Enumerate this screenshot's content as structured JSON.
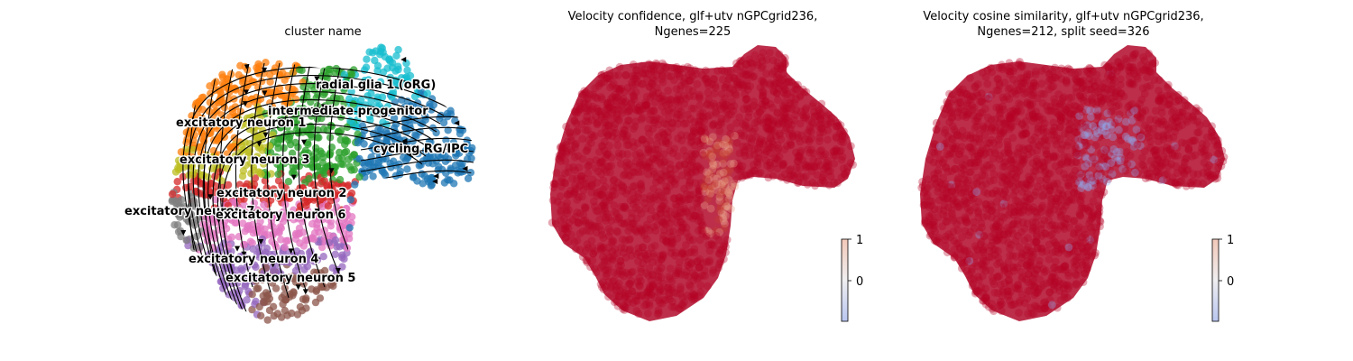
{
  "chart_data": [
    {
      "type": "scatter",
      "title": "cluster name",
      "overlay": "velocity streamlines",
      "clusters": [
        {
          "name": "radial glia 1 (oRG)",
          "color": "#17becf"
        },
        {
          "name": "intermediate progenitor",
          "color": "#2ca02c"
        },
        {
          "name": "excitatory neuron 1",
          "color": "#ff7f0e"
        },
        {
          "name": "cycling RG/IPC",
          "color": "#1f77b4"
        },
        {
          "name": "excitatory neuron 3",
          "color": "#bcbd22"
        },
        {
          "name": "excitatory neuron 2",
          "color": "#d62728"
        },
        {
          "name": "excitatory neuron 7",
          "color": "#7f7f7f"
        },
        {
          "name": "excitatory neuron 6",
          "color": "#e377c2"
        },
        {
          "name": "excitatory neuron 4",
          "color": "#9467bd"
        },
        {
          "name": "excitatory neuron 5",
          "color": "#8c564b"
        }
      ]
    },
    {
      "type": "scatter",
      "title_line1": "Velocity confidence, glf+utv nGPCgrid236,",
      "title_line2": "Ngenes=225",
      "colormap": "coolwarm",
      "colorbar": {
        "max": "1",
        "mid": "0"
      }
    },
    {
      "type": "scatter",
      "title_line1": "Velocity cosine similarity, glf+utv nGPCgrid236,",
      "title_line2": "Ngenes=212, split seed=326",
      "colormap": "coolwarm",
      "colorbar": {
        "max": "1",
        "mid": "0"
      }
    }
  ]
}
